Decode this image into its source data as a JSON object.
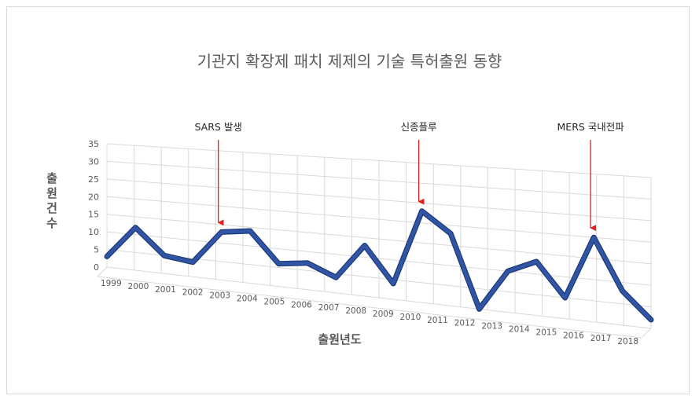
{
  "chart_data": {
    "type": "line",
    "title": "기관지 확장제 패치 제제의 기술 특허출원 동향",
    "xlabel": "출원년도",
    "ylabel": "출원건수",
    "ylim": [
      0,
      35
    ],
    "yticks": [
      0,
      5,
      10,
      15,
      20,
      25,
      30,
      35
    ],
    "grid": true,
    "categories": [
      "1999",
      "2000",
      "2001",
      "2002",
      "2003",
      "2004",
      "2005",
      "2006",
      "2007",
      "2008",
      "2009",
      "2010",
      "2011",
      "2012",
      "2013",
      "2014",
      "2015",
      "2016",
      "2017",
      "2018"
    ],
    "series": [
      {
        "values": [
          3,
          12,
          5,
          4,
          13,
          14,
          6,
          7,
          4,
          13,
          4,
          23,
          18,
          0,
          10,
          13,
          5,
          20,
          8,
          2
        ]
      }
    ],
    "annotations": [
      {
        "text": "SARS 발생",
        "category": "2003"
      },
      {
        "text": "신종플루",
        "category": "2010"
      },
      {
        "text": "MERS 국내전파",
        "category": "2016"
      }
    ],
    "line_color": "#2f55a4",
    "annotation_arrow_color": "#e02020"
  }
}
